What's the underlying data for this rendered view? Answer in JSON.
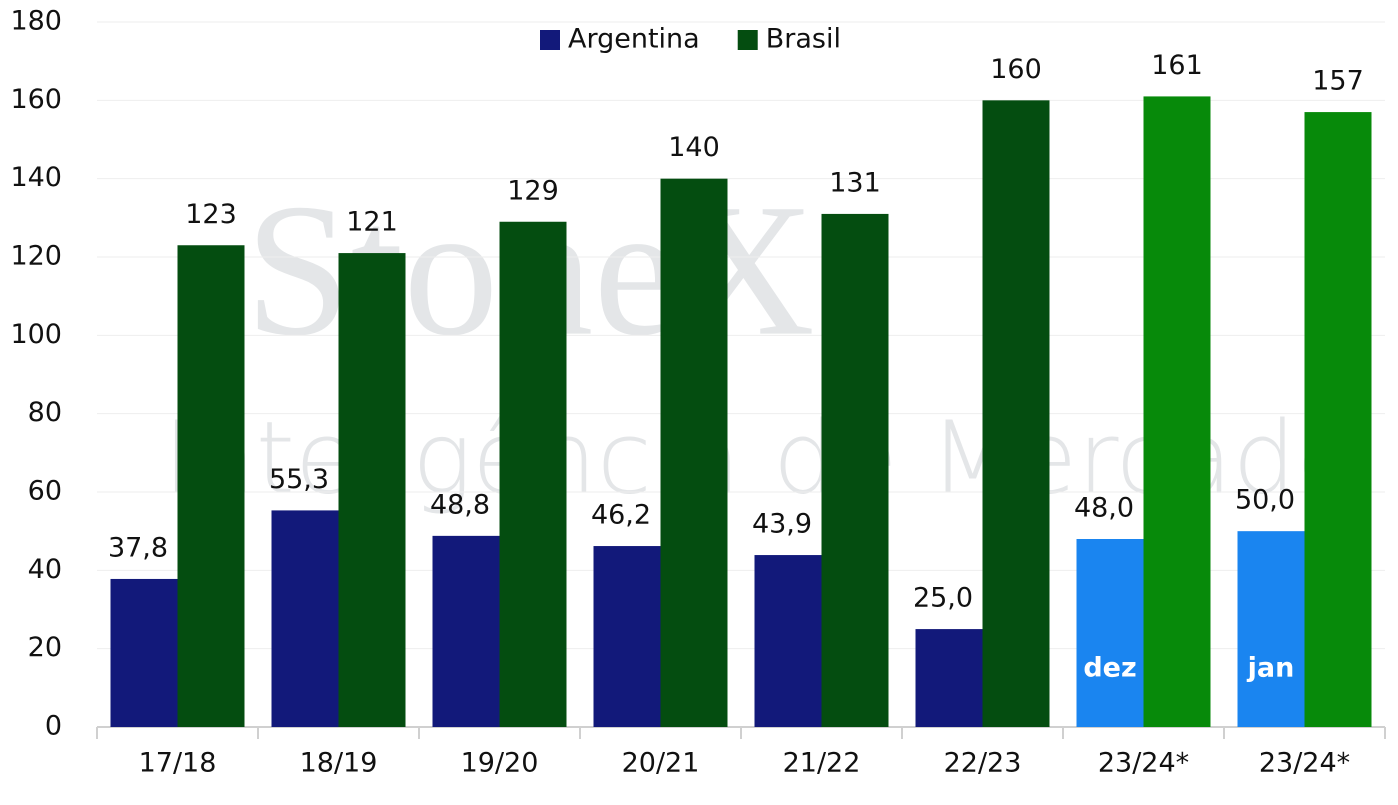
{
  "chart_data": {
    "type": "bar",
    "watermark": [
      "StoneX",
      "Inteligência de Mercado"
    ],
    "categories": [
      "17/18",
      "18/19",
      "19/20",
      "20/21",
      "21/22",
      "22/23",
      "23/24*",
      "23/24*"
    ],
    "series": [
      {
        "name": "Argentina",
        "color": "#12197a",
        "colors": [
          "#12197a",
          "#12197a",
          "#12197a",
          "#12197a",
          "#12197a",
          "#12197a",
          "#1a85f0",
          "#1a85f0"
        ],
        "values": [
          37.8,
          55.3,
          48.8,
          46.2,
          43.9,
          25.0,
          48.0,
          50.0
        ],
        "value_labels": [
          "37,8",
          "55,3",
          "48,8",
          "46,2",
          "43,9",
          "25,0",
          "48,0",
          "50,0"
        ],
        "bar_annotations": [
          null,
          null,
          null,
          null,
          null,
          null,
          "dez",
          "jan"
        ]
      },
      {
        "name": "Brasil",
        "color": "#044d10",
        "colors": [
          "#044d10",
          "#044d10",
          "#044d10",
          "#044d10",
          "#044d10",
          "#044d10",
          "#078a0a",
          "#078a0a"
        ],
        "values": [
          123,
          121,
          129,
          140,
          131,
          160,
          161,
          157
        ]
      }
    ],
    "ylim": [
      0,
      180
    ],
    "yticks": [
      0,
      20,
      40,
      60,
      80,
      100,
      120,
      140,
      160,
      180
    ],
    "grid": true,
    "legend": "top"
  }
}
